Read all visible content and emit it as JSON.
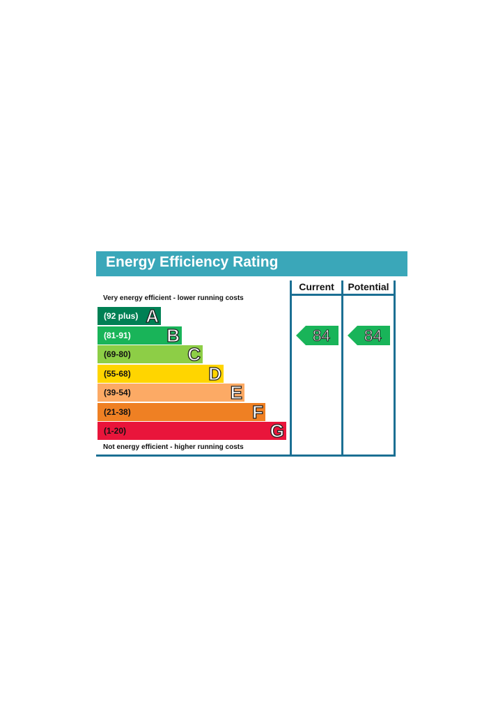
{
  "title": "Energy Efficiency Rating",
  "columns": {
    "current": "Current",
    "potential": "Potential"
  },
  "captions": {
    "top": "Very energy efficient - lower running costs",
    "bottom": "Not energy efficient - higher running costs"
  },
  "chart_data": {
    "type": "bar",
    "title": "Energy Efficiency Rating",
    "bands": [
      {
        "letter": "A",
        "range": "(92 plus)",
        "color": "#008054",
        "text_color": "#ffffff"
      },
      {
        "letter": "B",
        "range": "(81-91)",
        "color": "#19b459",
        "text_color": "#ffffff"
      },
      {
        "letter": "C",
        "range": "(69-80)",
        "color": "#8dce46",
        "text_color": "#111111"
      },
      {
        "letter": "D",
        "range": "(55-68)",
        "color": "#ffd500",
        "text_color": "#111111"
      },
      {
        "letter": "E",
        "range": "(39-54)",
        "color": "#fcaa65",
        "text_color": "#111111"
      },
      {
        "letter": "F",
        "range": "(21-38)",
        "color": "#ef8023",
        "text_color": "#111111"
      },
      {
        "letter": "G",
        "range": "(1-20)",
        "color": "#e9153b",
        "text_color": "#111111"
      }
    ],
    "current": {
      "value": 84,
      "band": "B"
    },
    "potential": {
      "value": 84,
      "band": "B"
    }
  }
}
